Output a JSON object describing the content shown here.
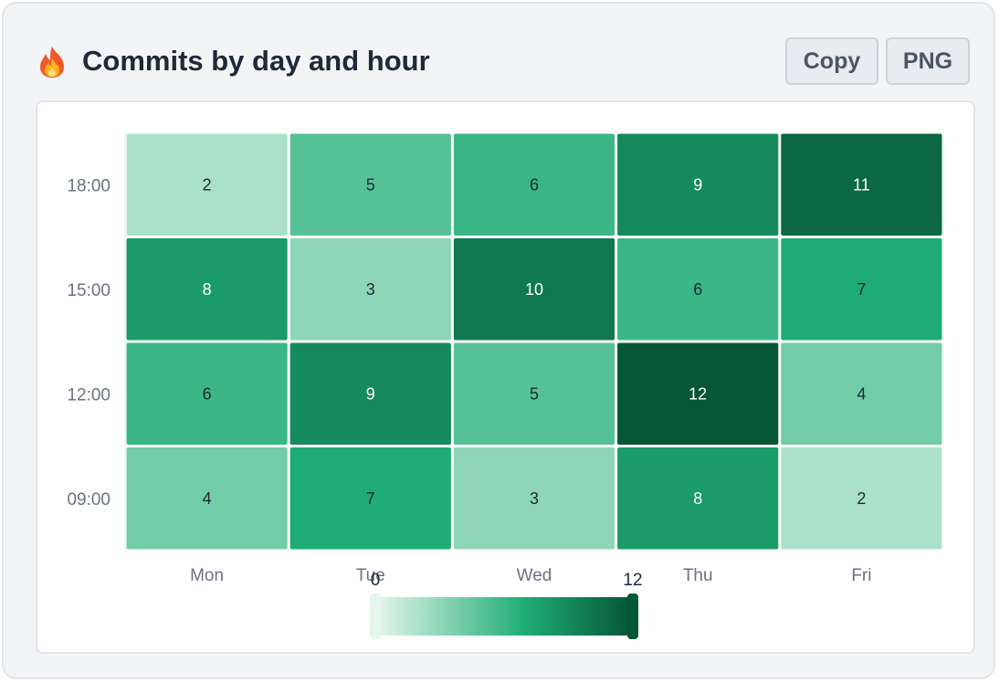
{
  "header": {
    "icon": "fire-icon",
    "title": "Commits by day and hour"
  },
  "toolbar": {
    "copy_label": "Copy",
    "png_label": "PNG"
  },
  "colors": {
    "scale_min": "#e3f5ec",
    "scale_mid": "#1fad74",
    "scale_max": "#065638"
  },
  "chart_data": {
    "type": "heatmap",
    "x_categories": [
      "Mon",
      "Tue",
      "Wed",
      "Thu",
      "Fri"
    ],
    "y_categories": [
      "18:00",
      "15:00",
      "12:00",
      "09:00"
    ],
    "values": [
      [
        2,
        5,
        6,
        9,
        11
      ],
      [
        8,
        3,
        10,
        6,
        7
      ],
      [
        6,
        9,
        5,
        12,
        4
      ],
      [
        4,
        7,
        3,
        8,
        2
      ]
    ],
    "color_range": [
      0,
      12
    ],
    "legend": {
      "min_label": "0",
      "max_label": "12",
      "placement": "bottom"
    }
  }
}
